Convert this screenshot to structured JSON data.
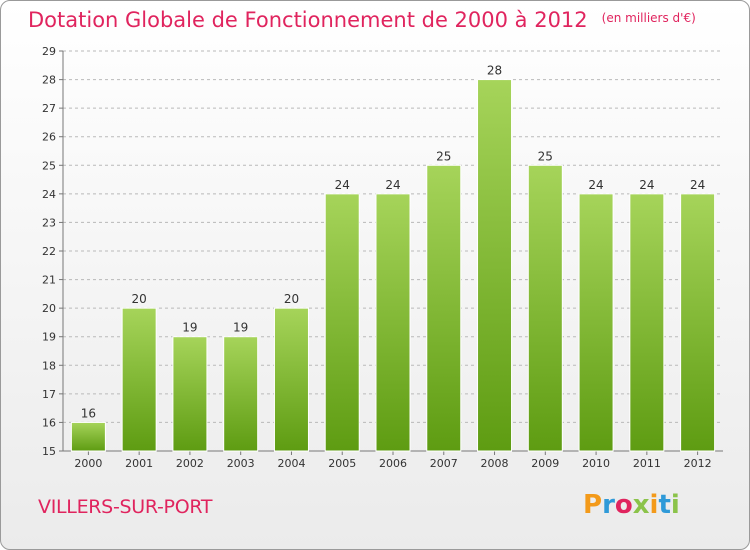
{
  "header": {
    "title": "Dotation Globale de Fonctionnement de 2000 à 2012",
    "unit": "(en milliers d'€)"
  },
  "footer": {
    "commune": "VILLERS-SUR-PORT",
    "brand": [
      "P",
      "r",
      "o",
      "x",
      "i",
      "t",
      "i"
    ]
  },
  "colors": {
    "title": "#e0245e",
    "bar_top": "#a6d45a",
    "bar_bottom": "#5e9c12",
    "brand": [
      "#f39a1a",
      "#2f9ad8",
      "#e0245e",
      "#8bc34a",
      "#f39a1a",
      "#2f9ad8",
      "#8bc34a"
    ]
  },
  "chart_data": {
    "type": "bar",
    "title": "Dotation Globale de Fonctionnement de 2000 à 2012",
    "subtitle": "(en milliers d'€)",
    "xlabel": "",
    "ylabel": "",
    "categories": [
      "2000",
      "2001",
      "2002",
      "2003",
      "2004",
      "2005",
      "2006",
      "2007",
      "2008",
      "2009",
      "2010",
      "2011",
      "2012"
    ],
    "values": [
      16,
      20,
      19,
      19,
      20,
      24,
      24,
      25,
      28,
      25,
      24,
      24,
      24
    ],
    "ylim": [
      15,
      29
    ],
    "yticks": [
      15,
      16,
      17,
      18,
      19,
      20,
      21,
      22,
      23,
      24,
      25,
      26,
      27,
      28,
      29
    ],
    "grid": "horizontal-dashed",
    "data_labels": true
  }
}
